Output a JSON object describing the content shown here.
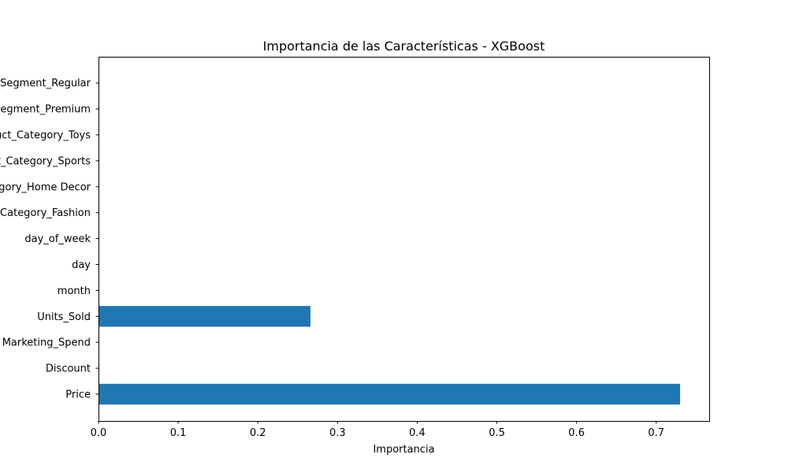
{
  "chart_data": {
    "type": "bar",
    "orientation": "horizontal",
    "title": "Importancia de las Características - XGBoost",
    "xlabel": "Importancia",
    "ylabel": "",
    "categories": [
      "Price",
      "Discount",
      "Marketing_Spend",
      "Units_Sold",
      "month",
      "day",
      "day_of_week",
      "Product_Category_Fashion",
      "Product_Category_Home Decor",
      "Product_Category_Sports",
      "Product_Category_Toys",
      "Customer_Segment_Premium",
      "Customer_Segment_Regular"
    ],
    "values": [
      0.73,
      0.0,
      0.0,
      0.266,
      0.0,
      0.0,
      0.0,
      0.0,
      0.0,
      0.0,
      0.0,
      0.0,
      0.0
    ],
    "xlim": [
      0.0,
      0.7665
    ],
    "xticks": [
      0.0,
      0.1,
      0.2,
      0.3,
      0.4,
      0.5,
      0.6,
      0.7
    ],
    "xtick_labels": [
      "0.0",
      "0.1",
      "0.2",
      "0.3",
      "0.4",
      "0.5",
      "0.6",
      "0.7"
    ],
    "grid": false,
    "legend": "none",
    "bar_color": "#1f77b4"
  }
}
